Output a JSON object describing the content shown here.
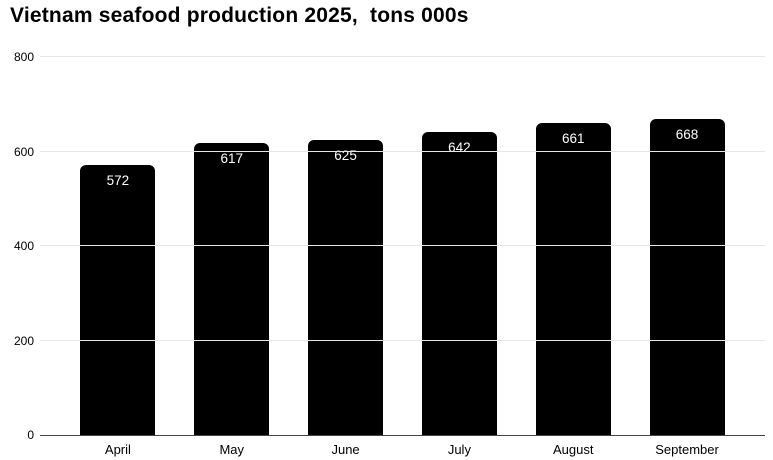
{
  "title": "Vietnam seafood production 2025,  tons 000s",
  "colors": {
    "bar": "#000000",
    "gridline": "#e6e6e6",
    "axis_line": "#444444",
    "value_label_text": "#ffffff",
    "axis_text": "#000000",
    "background": "#ffffff"
  },
  "chart_data": {
    "type": "bar",
    "title": "Vietnam seafood production 2025,  tons 000s",
    "categories": [
      "April",
      "May",
      "June",
      "July",
      "August",
      "September"
    ],
    "values": [
      572,
      617,
      625,
      642,
      661,
      668
    ],
    "xlabel": "",
    "ylabel": "",
    "ylim": [
      0,
      800
    ],
    "y_ticks": [
      0,
      200,
      400,
      600,
      800
    ],
    "grid": true,
    "legend": false,
    "value_labels": "inside-top",
    "bar_color": "#000000"
  }
}
